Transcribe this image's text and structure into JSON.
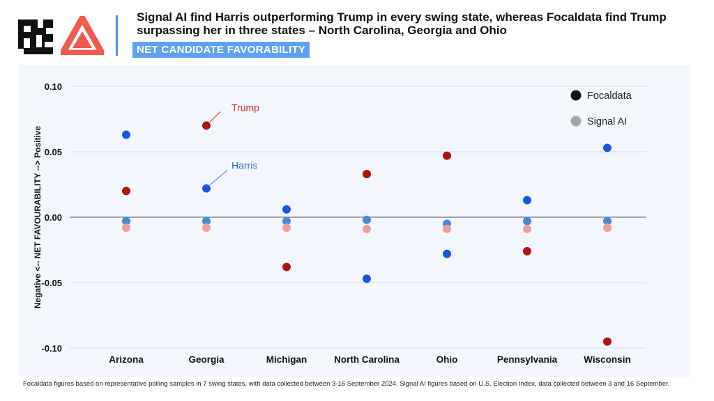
{
  "header": {
    "headline": "Signal AI find Harris outperforming Trump in every swing state, whereas Focaldata find Trump surpassing her in three states – North Carolina, Georgia and Ohio",
    "tag": "NET CANDIDATE FAVORABILITY",
    "logos": [
      "fd-logo-icon",
      "signal-ai-triangle-icon"
    ]
  },
  "chart_data": {
    "type": "scatter",
    "ylabel": "Negative <-- NET FAVOURABILITY --> Positive",
    "ylim": [
      -0.1,
      0.1
    ],
    "yticks": [
      "0.10",
      "0.05",
      "0.00",
      "-0.05",
      "-0.10"
    ],
    "categories": [
      "Arizona",
      "Georgia",
      "Michigan",
      "North Carolina",
      "Ohio",
      "Pennsylvania",
      "Wisconsin"
    ],
    "grid": true,
    "legend": {
      "placement": "top-right",
      "entries": [
        "Focaldata",
        "Signal AI"
      ]
    },
    "series": [
      {
        "source": "Focaldata",
        "candidate": "Harris",
        "color": "#1459d9",
        "values": [
          0.063,
          0.022,
          0.006,
          -0.047,
          -0.028,
          0.013,
          0.053
        ]
      },
      {
        "source": "Focaldata",
        "candidate": "Trump",
        "color": "#b0140f",
        "values": [
          0.02,
          0.07,
          -0.038,
          0.033,
          0.047,
          -0.026,
          -0.095
        ]
      },
      {
        "source": "Signal AI",
        "candidate": "Harris",
        "color": "#4a86d6",
        "values": [
          -0.003,
          -0.003,
          -0.003,
          -0.002,
          -0.005,
          -0.003,
          -0.003
        ]
      },
      {
        "source": "Signal AI",
        "candidate": "Trump",
        "color": "#f09c9a",
        "values": [
          -0.008,
          -0.008,
          -0.008,
          -0.009,
          -0.009,
          -0.009,
          -0.008
        ]
      }
    ],
    "annotations": [
      {
        "text": "Trump",
        "category": "Georgia",
        "color": "#d42a24"
      },
      {
        "text": "Harris",
        "category": "Georgia",
        "color": "#2f6fc9"
      }
    ],
    "legend_colors": {
      "Focaldata": "#111111",
      "Signal AI": "#a5a5a5"
    }
  },
  "footnote": "Focaldata figures based on representative polling samples in 7 swing states, with data collected between 3-16 September 2024. Signal AI figures based on U.S. Election Index, data collected between 3 and 16 September."
}
